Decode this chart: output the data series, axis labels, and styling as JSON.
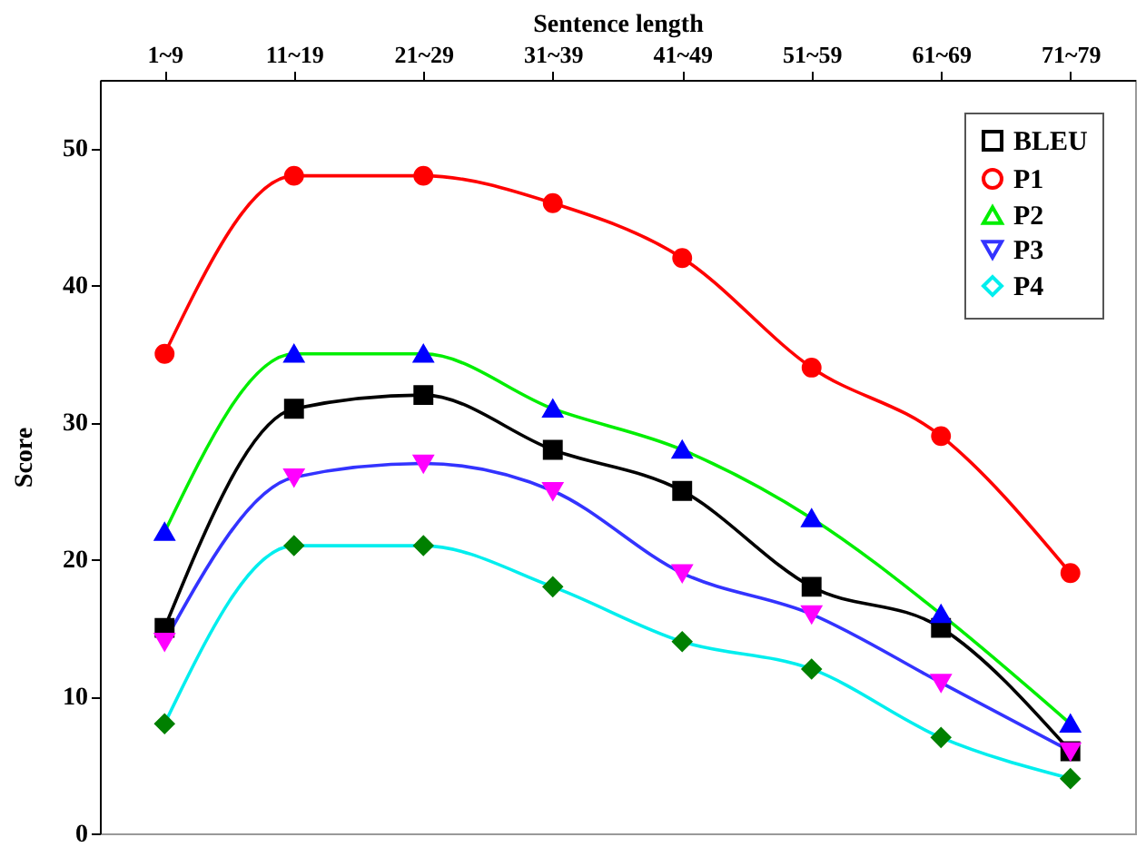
{
  "chart_data": {
    "type": "line",
    "xlabel": "Sentence length",
    "ylabel": "Score",
    "categories": [
      "1~9",
      "11~19",
      "21~29",
      "31~39",
      "41~49",
      "51~59",
      "61~69",
      "71~79"
    ],
    "ylim": [
      0,
      55
    ],
    "yticks": [
      0,
      10,
      20,
      30,
      40,
      50
    ],
    "grid": false,
    "legend": "top right",
    "line_style": "solid",
    "series": [
      {
        "name": "BLEU",
        "color": "#000000",
        "marker": "square",
        "colors": [
          "#000000",
          "#000000",
          "#000000",
          "#000000",
          "#000000",
          "#000000",
          "#000000",
          "#000000"
        ],
        "values": [
          15,
          31,
          32,
          28,
          25,
          18,
          15,
          6
        ]
      },
      {
        "name": "P1",
        "color": "#ff0000",
        "marker": "circle",
        "colors": [
          "#ff0000",
          "#ff0000",
          "#ff0000",
          "#ff0000",
          "#ff0000",
          "#ff0000",
          "#ff0000",
          "#ff0000"
        ],
        "values": [
          35,
          48,
          48,
          46,
          42,
          34,
          29,
          19
        ]
      },
      {
        "name": "P2",
        "color": "#00ee00",
        "marker": "triangle",
        "colors": [
          "#0000ff",
          "#0000ff",
          "#0000ff",
          "#0000ff",
          "#0000ff",
          "#0000ff",
          "#0000ff",
          "#0000ff"
        ],
        "values": [
          22,
          35,
          35,
          31,
          28,
          23,
          16,
          8
        ]
      },
      {
        "name": "P3",
        "color": "#3333ff",
        "marker": "triangle-down",
        "colors": [
          "#ff00ff",
          "#ff00ff",
          "#ff00ff",
          "#ff00ff",
          "#ff00ff",
          "#ff00ff",
          "#ff00ff",
          "#ff00ff"
        ],
        "values": [
          14,
          26,
          27,
          25,
          19,
          16,
          11,
          6
        ]
      },
      {
        "name": "P4",
        "color": "#00eeee",
        "marker": "diamond",
        "colors": [
          "#008000",
          "#008000",
          "#008000",
          "#008000",
          "#008000",
          "#008000",
          "#008000",
          "#008000"
        ],
        "values": [
          8,
          21,
          21,
          18,
          14,
          12,
          7,
          4
        ]
      }
    ]
  }
}
